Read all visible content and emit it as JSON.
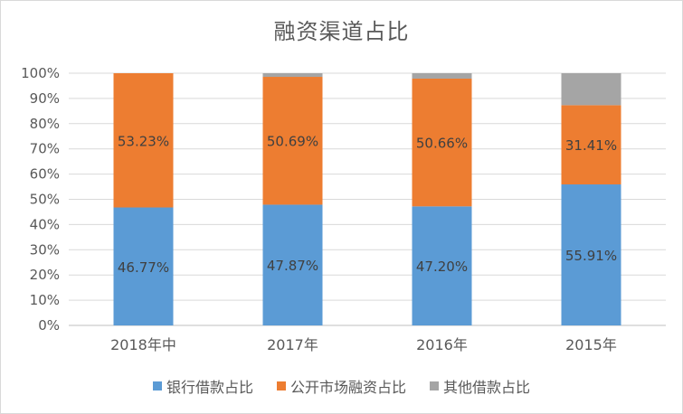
{
  "chart_data": {
    "type": "bar",
    "stacked": true,
    "title": "融资渠道占比",
    "categories": [
      "2018年中",
      "2017年",
      "2016年",
      "2015年"
    ],
    "series": [
      {
        "name": "银行借款占比",
        "color": "#5b9bd5",
        "values": [
          46.77,
          47.87,
          47.2,
          55.91
        ],
        "labels": [
          "46.77%",
          "47.87%",
          "47.20%",
          "55.91%"
        ]
      },
      {
        "name": "公开市场融资占比",
        "color": "#ed7d31",
        "values": [
          53.23,
          50.69,
          50.66,
          31.41
        ],
        "labels": [
          "53.23%",
          "50.69%",
          "50.66%",
          "31.41%"
        ]
      },
      {
        "name": "其他借款占比",
        "color": "#a5a5a5",
        "values": [
          0,
          1.44,
          2.14,
          12.68
        ],
        "labels": [
          "",
          "",
          "",
          ""
        ]
      }
    ],
    "ylim": [
      0,
      100
    ],
    "yticks": [
      "0%",
      "10%",
      "20%",
      "30%",
      "40%",
      "50%",
      "60%",
      "70%",
      "80%",
      "90%",
      "100%"
    ],
    "grid": true,
    "legend_position": "bottom"
  }
}
